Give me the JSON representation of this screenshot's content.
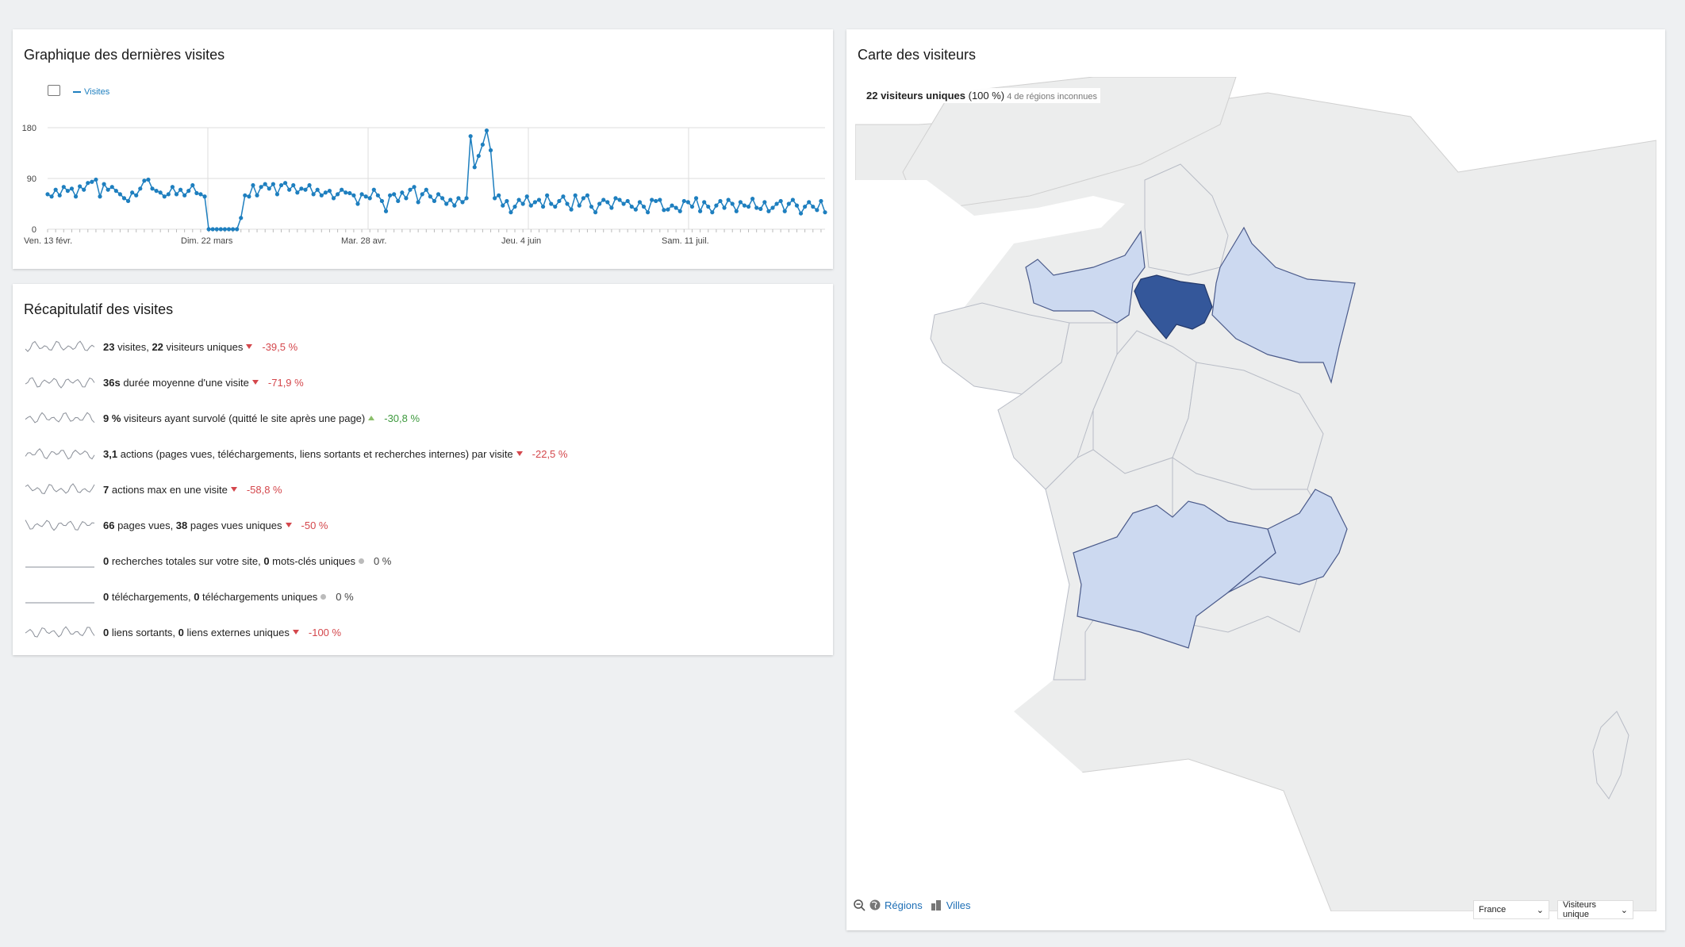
{
  "graph": {
    "title": "Graphique des dernières visites",
    "legend": "Visites",
    "x_labels": [
      "Ven. 13 févr.",
      "Dim. 22 mars",
      "Mar. 28 avr.",
      "Jeu. 4 juin",
      "Sam. 11 juil."
    ],
    "y_labels": [
      "180",
      "90",
      "0"
    ],
    "series_color": "#1e7fbf"
  },
  "chart_data": {
    "type": "line",
    "series": [
      {
        "name": "Visites",
        "values": [
          62,
          58,
          70,
          60,
          75,
          68,
          72,
          58,
          76,
          70,
          82,
          84,
          88,
          58,
          80,
          70,
          75,
          68,
          62,
          55,
          50,
          65,
          60,
          72,
          86,
          88,
          72,
          68,
          65,
          58,
          62,
          75,
          62,
          70,
          60,
          68,
          78,
          64,
          62,
          58,
          0,
          0,
          0,
          0,
          0,
          0,
          0,
          0,
          20,
          60,
          58,
          78,
          60,
          75,
          80,
          72,
          80,
          62,
          78,
          82,
          70,
          78,
          65,
          72,
          70,
          78,
          62,
          70,
          60,
          65,
          68,
          55,
          62,
          70,
          65,
          64,
          60,
          45,
          62,
          58,
          55,
          70,
          60,
          50,
          32,
          60,
          62,
          50,
          65,
          55,
          70,
          75,
          48,
          62,
          70,
          58,
          50,
          62,
          55,
          45,
          52,
          42,
          55,
          48,
          55,
          165,
          110,
          130,
          150,
          175,
          140,
          55,
          60,
          42,
          50,
          30,
          40,
          52,
          45,
          58,
          42,
          48,
          52,
          40,
          60,
          45,
          40,
          50,
          58,
          45,
          35,
          60,
          42,
          55,
          60,
          40,
          30,
          45,
          52,
          48,
          38,
          55,
          52,
          45,
          50,
          40,
          35,
          48,
          40,
          30,
          52,
          50,
          52,
          34,
          35,
          42,
          38,
          32,
          50,
          48,
          40,
          55,
          32,
          48,
          40,
          30,
          42,
          50,
          38,
          52,
          45,
          32,
          48,
          42,
          40,
          54,
          38,
          36,
          48,
          32,
          38,
          45,
          50,
          32,
          45,
          52,
          42,
          28,
          40,
          48,
          40,
          34,
          50,
          30
        ]
      }
    ],
    "ylim": [
      0,
      180
    ],
    "yticks": [
      0,
      90,
      180
    ]
  },
  "summary": {
    "title": "Récapitulatif des visites",
    "rows": [
      {
        "v1": "23",
        "t1": " visites, ",
        "v2": "22",
        "t2": " visiteurs uniques",
        "change": "-39,5 %",
        "dir": "down"
      },
      {
        "v1": "36s",
        "t1": " durée moyenne d'une visite",
        "v2": "",
        "t2": "",
        "change": "-71,9 %",
        "dir": "down"
      },
      {
        "v1": "9 %",
        "t1": " visiteurs ayant survolé (quitté le site après une page)",
        "v2": "",
        "t2": "",
        "change": "-30,8 %",
        "dir": "up"
      },
      {
        "v1": "3,1",
        "t1": " actions (pages vues, téléchargements, liens sortants et recherches internes) par visite",
        "v2": "",
        "t2": "",
        "change": "-22,5 %",
        "dir": "down"
      },
      {
        "v1": "7",
        "t1": " actions max en une visite",
        "v2": "",
        "t2": "",
        "change": "-58,8 %",
        "dir": "down"
      },
      {
        "v1": "66",
        "t1": " pages vues, ",
        "v2": "38",
        "t2": " pages vues uniques",
        "change": "-50 %",
        "dir": "down"
      },
      {
        "v1": "0",
        "t1": " recherches totales sur votre site, ",
        "v2": "0",
        "t2": " mots-clés uniques",
        "change": "0 %",
        "dir": "none"
      },
      {
        "v1": "0",
        "t1": " téléchargements, ",
        "v2": "0",
        "t2": " téléchargements uniques",
        "change": "0 %",
        "dir": "none"
      },
      {
        "v1": "0",
        "t1": " liens sortants, ",
        "v2": "0",
        "t2": " liens externes uniques",
        "change": "-100 %",
        "dir": "down"
      }
    ]
  },
  "map": {
    "title": "Carte des visiteurs",
    "stat_value": "22 visiteurs uniques",
    "stat_pct": " (100 %)",
    "stat_note": " 4 de régions inconnues",
    "tab_regions": "Régions",
    "tab_cities": "Villes",
    "country_select": "France",
    "metric_select": "Visiteurs unique",
    "colors": {
      "dark": "#34579a",
      "light": "#ccd9f0",
      "grey": "#eceded",
      "sea": "#ffffff"
    }
  }
}
